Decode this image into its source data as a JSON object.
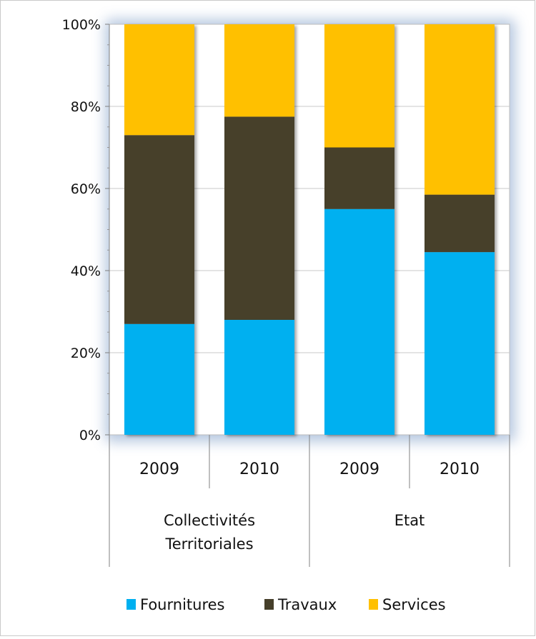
{
  "chart_data": {
    "type": "bar",
    "stacked": true,
    "percent": true,
    "categories": [
      "2009",
      "2010",
      "2009",
      "2010"
    ],
    "groups": [
      {
        "label": "Collectivités Territoriales",
        "label_lines": [
          "Collectivités",
          "Territoriales"
        ]
      },
      {
        "label": "Etat",
        "label_lines": [
          "Etat"
        ]
      }
    ],
    "series": [
      {
        "name": "Fournitures",
        "color": "#00b0f0",
        "values": [
          27,
          28,
          55,
          44.5
        ]
      },
      {
        "name": "Travaux",
        "color": "#463f2a",
        "values": [
          46,
          49.5,
          15,
          14
        ]
      },
      {
        "name": "Services",
        "color": "#ffc000",
        "values": [
          27,
          22.5,
          30,
          41.5
        ]
      }
    ],
    "y_ticks": [
      "0%",
      "20%",
      "40%",
      "60%",
      "80%",
      "100%"
    ],
    "ylim": [
      0,
      100
    ],
    "grid": true,
    "legend_position": "bottom"
  }
}
